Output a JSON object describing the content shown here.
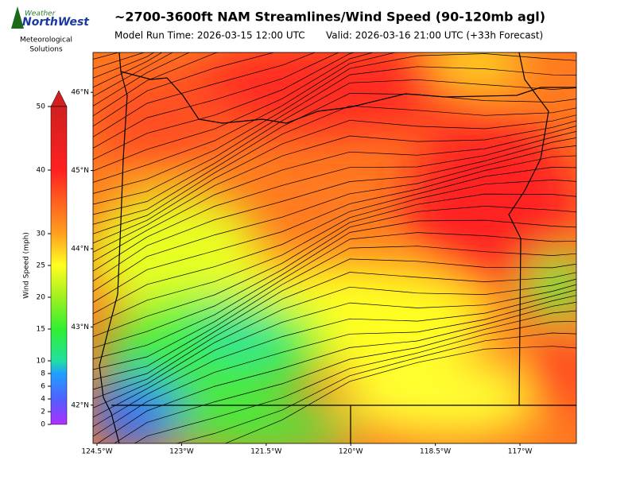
{
  "logo": {
    "brand_top": "Weather",
    "brand": "NorthWest",
    "org_line1": "Meteorological",
    "org_line2": "Solutions"
  },
  "title": "~2700-3600ft NAM Streamlines/Wind Speed (90-120mb agl)",
  "model_run": "Model Run Time: 2026-03-15 12:00 UTC",
  "valid": "Valid: 2026-03-16 21:00 UTC  (+33h Forecast)",
  "colorbar": {
    "label": "Wind Speed (mph)",
    "lim": [
      0,
      50
    ],
    "ticks": [
      0,
      2,
      4,
      6,
      8,
      10,
      15,
      20,
      25,
      30,
      40,
      50
    ]
  },
  "map": {
    "xlim": [
      -124.57,
      -116.0
    ],
    "ylim": [
      41.51,
      46.51
    ],
    "xticks": [
      {
        "value": -124.5,
        "label": "124.5°W"
      },
      {
        "value": -123,
        "label": "123°W"
      },
      {
        "value": -121.5,
        "label": "121.5°W"
      },
      {
        "value": -120,
        "label": "120°W"
      },
      {
        "value": -118.5,
        "label": "118.5°W"
      },
      {
        "value": -117,
        "label": "117°W"
      }
    ],
    "yticks": [
      {
        "value": 42,
        "label": "42°N"
      },
      {
        "value": 43,
        "label": "43°N"
      },
      {
        "value": 44,
        "label": "44°N"
      },
      {
        "value": 45,
        "label": "45°N"
      },
      {
        "value": 46,
        "label": "46°N"
      }
    ]
  }
}
